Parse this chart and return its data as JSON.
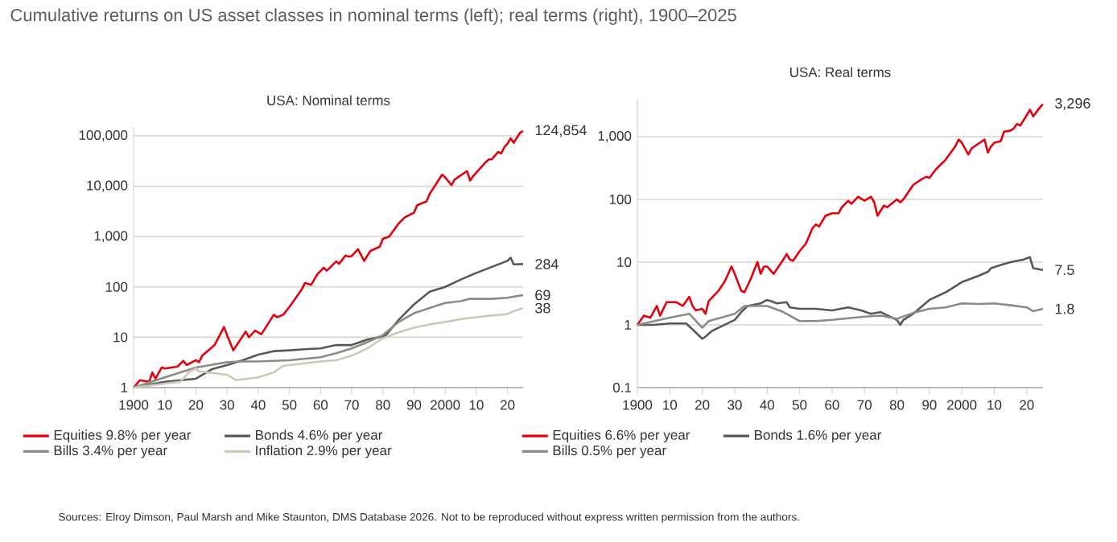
{
  "chart_data": [
    {
      "type": "line",
      "title": "USA: Nominal terms",
      "log": "y",
      "grid": "y",
      "legend": "bottom",
      "xlim": [
        1900,
        2025
      ],
      "ylim": [
        1,
        150000
      ],
      "xticks": [
        {
          "value": 1900,
          "label": "1900"
        },
        {
          "value": 1910,
          "label": "10"
        },
        {
          "value": 1920,
          "label": "20"
        },
        {
          "value": 1930,
          "label": "30"
        },
        {
          "value": 1940,
          "label": "40"
        },
        {
          "value": 1950,
          "label": "50"
        },
        {
          "value": 1960,
          "label": "60"
        },
        {
          "value": 1970,
          "label": "70"
        },
        {
          "value": 1980,
          "label": "80"
        },
        {
          "value": 1990,
          "label": "90"
        },
        {
          "value": 2000,
          "label": "2000"
        },
        {
          "value": 2010,
          "label": "10"
        },
        {
          "value": 2020,
          "label": "20"
        }
      ],
      "yticks": [
        1,
        10,
        100,
        {
          "value": 1000,
          "label": "1,000"
        },
        {
          "value": 10000,
          "label": "10,000"
        },
        {
          "value": 100000,
          "label": "100,000"
        }
      ],
      "series": [
        {
          "name": "Equities 9.8% per year",
          "color": "#e3000f",
          "x": [
            1900,
            1902,
            1905,
            1906,
            1907,
            1909,
            1910,
            1914,
            1916,
            1917,
            1920,
            1921,
            1922,
            1926,
            1929,
            1930,
            1932,
            1936,
            1937,
            1939,
            1941,
            1945,
            1946,
            1948,
            1950,
            1954,
            1955,
            1957,
            1959,
            1961,
            1962,
            1965,
            1966,
            1968,
            1969,
            1970,
            1972,
            1974,
            1976,
            1979,
            1980,
            1982,
            1985,
            1987,
            1990,
            1991,
            1994,
            1995,
            1999,
            2000,
            2002,
            2003,
            2007,
            2008,
            2009,
            2013,
            2014,
            2015,
            2017,
            2018,
            2019,
            2020,
            2021,
            2022,
            2023,
            2024,
            2025
          ],
          "values": [
            1,
            1.4,
            1.3,
            2,
            1.5,
            2.5,
            2.4,
            2.6,
            3.4,
            2.8,
            3.5,
            3.2,
            4.3,
            7,
            16,
            11,
            5.5,
            13,
            10,
            13.5,
            11.5,
            28,
            25,
            28,
            40,
            90,
            120,
            110,
            180,
            240,
            210,
            320,
            290,
            420,
            400,
            410,
            560,
            330,
            520,
            630,
            900,
            1000,
            1800,
            2400,
            3000,
            4200,
            5000,
            7000,
            17000,
            15000,
            10500,
            13500,
            20000,
            13000,
            16000,
            30000,
            34000,
            34500,
            48000,
            45000,
            60000,
            70000,
            90000,
            73000,
            92000,
            115000,
            124854
          ],
          "value_labels": [
            null,
            null,
            null,
            null,
            null,
            null,
            null,
            null,
            null,
            null,
            null,
            null,
            null,
            null,
            null,
            null,
            null,
            null,
            null,
            null,
            null,
            null,
            null,
            null,
            null,
            null,
            null,
            null,
            null,
            null,
            null,
            null,
            null,
            null,
            null,
            null,
            null,
            null,
            null,
            null,
            null,
            null,
            null,
            null,
            null,
            null,
            null,
            null,
            null,
            null,
            null,
            null,
            null,
            null,
            null,
            null,
            null,
            null,
            null,
            null,
            null,
            null,
            null,
            null,
            null,
            null,
            "124,854"
          ]
        },
        {
          "name": "Bonds 4.6% per year",
          "color": "#58585a",
          "x": [
            1900,
            1910,
            1920,
            1925,
            1930,
            1935,
            1940,
            1945,
            1950,
            1955,
            1960,
            1965,
            1970,
            1975,
            1979,
            1981,
            1985,
            1990,
            1995,
            2000,
            2005,
            2010,
            2015,
            2020,
            2021,
            2022,
            2025
          ],
          "values": [
            1,
            1.3,
            1.5,
            2.3,
            2.8,
            3.5,
            4.5,
            5.3,
            5.5,
            5.8,
            6,
            7,
            7,
            9,
            10,
            11,
            22,
            45,
            80,
            100,
            140,
            190,
            250,
            330,
            380,
            280,
            284
          ],
          "value_labels": [
            null,
            null,
            null,
            null,
            null,
            null,
            null,
            null,
            null,
            null,
            null,
            null,
            null,
            null,
            null,
            null,
            null,
            null,
            null,
            null,
            null,
            null,
            null,
            null,
            null,
            null,
            "284"
          ]
        },
        {
          "name": "Bills 3.4% per year",
          "color": "#8c8c84",
          "x": [
            1900,
            1910,
            1920,
            1930,
            1935,
            1940,
            1950,
            1960,
            1965,
            1970,
            1975,
            1980,
            1985,
            1990,
            1995,
            2000,
            2005,
            2008,
            2015,
            2020,
            2025
          ],
          "values": [
            1,
            1.6,
            2.5,
            3.2,
            3.3,
            3.3,
            3.5,
            4,
            4.8,
            6,
            8,
            11,
            20,
            30,
            38,
            48,
            52,
            58,
            58,
            61,
            69
          ],
          "value_labels": [
            null,
            null,
            null,
            null,
            null,
            null,
            null,
            null,
            null,
            null,
            null,
            null,
            null,
            null,
            null,
            null,
            null,
            null,
            null,
            null,
            "69"
          ]
        },
        {
          "name": "Inflation 2.9% per year",
          "color": "#ccc8b8",
          "x": [
            1900,
            1910,
            1915,
            1918,
            1920,
            1921,
            1930,
            1933,
            1940,
            1945,
            1948,
            1950,
            1960,
            1965,
            1970,
            1975,
            1980,
            1985,
            1990,
            1995,
            2000,
            2005,
            2010,
            2015,
            2020,
            2022,
            2025
          ],
          "values": [
            1,
            1.2,
            1.3,
            2.1,
            2.4,
            2.1,
            1.8,
            1.4,
            1.6,
            2,
            2.7,
            2.8,
            3.3,
            3.5,
            4.3,
            6,
            9.5,
            12.5,
            15.5,
            18,
            20,
            23,
            25,
            27,
            29,
            33,
            38
          ],
          "value_labels": [
            null,
            null,
            null,
            null,
            null,
            null,
            null,
            null,
            null,
            null,
            null,
            null,
            null,
            null,
            null,
            null,
            null,
            null,
            null,
            null,
            null,
            null,
            null,
            null,
            null,
            null,
            "38"
          ]
        }
      ],
      "annotations": [
        "Cumulative returns on US asset classes in nominal terms (left); real terms (right), 1900–2025",
        "Sources: Elroy Dimson, Paul Marsh and Mike Staunton, DMS Database 2026. Not to be reproduced without express written permission from the authors."
      ]
    },
    {
      "type": "line",
      "title": "USA: Real terms",
      "log": "y",
      "grid": "y",
      "legend": "bottom",
      "xlim": [
        1900,
        2025
      ],
      "ylim": [
        0.1,
        4000
      ],
      "xticks": [
        {
          "value": 1900,
          "label": "1900"
        },
        {
          "value": 1910,
          "label": "10"
        },
        {
          "value": 1920,
          "label": "20"
        },
        {
          "value": 1930,
          "label": "30"
        },
        {
          "value": 1940,
          "label": "40"
        },
        {
          "value": 1950,
          "label": "50"
        },
        {
          "value": 1960,
          "label": "60"
        },
        {
          "value": 1970,
          "label": "70"
        },
        {
          "value": 1980,
          "label": "80"
        },
        {
          "value": 1990,
          "label": "90"
        },
        {
          "value": 2000,
          "label": "2000"
        },
        {
          "value": 2010,
          "label": "10"
        },
        {
          "value": 2020,
          "label": "20"
        }
      ],
      "yticks": [
        0.1,
        1,
        10,
        100,
        {
          "value": 1000,
          "label": "1,000"
        }
      ],
      "series": [
        {
          "name": "Equities 6.6% per year",
          "color": "#e3000f",
          "x": [
            1900,
            1902,
            1904,
            1906,
            1907,
            1909,
            1912,
            1914,
            1916,
            1917,
            1918,
            1920,
            1921,
            1922,
            1925,
            1927,
            1929,
            1930,
            1932,
            1933,
            1935,
            1937,
            1938,
            1939,
            1940,
            1942,
            1945,
            1946,
            1947,
            1948,
            1950,
            1952,
            1954,
            1955,
            1956,
            1958,
            1960,
            1962,
            1963,
            1965,
            1966,
            1968,
            1970,
            1972,
            1973,
            1974,
            1976,
            1977,
            1980,
            1981,
            1982,
            1985,
            1987,
            1989,
            1990,
            1992,
            1995,
            1998,
            1999,
            2000,
            2002,
            2003,
            2007,
            2008,
            2009,
            2010,
            2012,
            2013,
            2015,
            2016,
            2017,
            2018,
            2020,
            2021,
            2022,
            2024,
            2025
          ],
          "values": [
            1,
            1.4,
            1.3,
            2,
            1.4,
            2.3,
            2.3,
            2,
            2.8,
            2,
            1.7,
            1.8,
            1.5,
            2.4,
            3.5,
            5,
            8.5,
            6.5,
            3.5,
            3.3,
            5.5,
            10,
            6.5,
            8.5,
            8.5,
            6.5,
            11,
            13.5,
            11,
            10.5,
            15,
            20,
            35,
            40,
            37,
            55,
            60,
            60,
            75,
            95,
            85,
            110,
            95,
            110,
            90,
            55,
            80,
            75,
            100,
            90,
            100,
            170,
            200,
            230,
            220,
            300,
            430,
            700,
            900,
            800,
            520,
            650,
            900,
            560,
            700,
            800,
            850,
            1200,
            1250,
            1350,
            1600,
            1500,
            2200,
            2700,
            2100,
            2900,
            3296
          ],
          "value_labels": [
            null,
            null,
            null,
            null,
            null,
            null,
            null,
            null,
            null,
            null,
            null,
            null,
            null,
            null,
            null,
            null,
            null,
            null,
            null,
            null,
            null,
            null,
            null,
            null,
            null,
            null,
            null,
            null,
            null,
            null,
            null,
            null,
            null,
            null,
            null,
            null,
            null,
            null,
            null,
            null,
            null,
            null,
            null,
            null,
            null,
            null,
            null,
            null,
            null,
            null,
            null,
            null,
            null,
            null,
            null,
            null,
            null,
            null,
            null,
            null,
            null,
            null,
            null,
            null,
            null,
            null,
            null,
            null,
            null,
            null,
            null,
            null,
            null,
            null,
            null,
            null,
            "3,296"
          ]
        },
        {
          "name": "Bonds 1.6% per year",
          "color": "#58585a",
          "x": [
            1900,
            1905,
            1910,
            1915,
            1917,
            1920,
            1921,
            1923,
            1925,
            1930,
            1932,
            1934,
            1938,
            1940,
            1941,
            1943,
            1946,
            1947,
            1950,
            1955,
            1960,
            1965,
            1969,
            1972,
            1975,
            1980,
            1981,
            1982,
            1985,
            1990,
            1995,
            2000,
            2005,
            2008,
            2009,
            2012,
            2015,
            2019,
            2021,
            2022,
            2025
          ],
          "values": [
            1,
            1,
            1.05,
            1.05,
            0.85,
            0.6,
            0.65,
            0.8,
            0.9,
            1.2,
            1.6,
            2,
            2.2,
            2.5,
            2.4,
            2.2,
            2.3,
            1.9,
            1.8,
            1.8,
            1.7,
            1.9,
            1.7,
            1.5,
            1.6,
            1.2,
            1,
            1.2,
            1.5,
            2.5,
            3.3,
            4.8,
            6,
            7,
            8,
            9,
            10,
            11,
            12,
            8,
            7.5
          ],
          "value_labels": [
            null,
            null,
            null,
            null,
            null,
            null,
            null,
            null,
            null,
            null,
            null,
            null,
            null,
            null,
            null,
            null,
            null,
            null,
            null,
            null,
            null,
            null,
            null,
            null,
            null,
            null,
            null,
            null,
            null,
            null,
            null,
            null,
            null,
            null,
            null,
            null,
            null,
            null,
            null,
            null,
            "7.5"
          ]
        },
        {
          "name": "Bills 0.5% per year",
          "color": "#8c8c84",
          "x": [
            1900,
            1910,
            1916,
            1920,
            1922,
            1930,
            1933,
            1940,
            1945,
            1950,
            1955,
            1960,
            1970,
            1975,
            1980,
            1985,
            1990,
            1995,
            2000,
            2005,
            2010,
            2015,
            2020,
            2022,
            2025
          ],
          "values": [
            1,
            1.3,
            1.5,
            0.9,
            1.15,
            1.5,
            2,
            2,
            1.6,
            1.15,
            1.15,
            1.2,
            1.35,
            1.4,
            1.25,
            1.55,
            1.8,
            1.9,
            2.2,
            2.15,
            2.2,
            2.05,
            1.9,
            1.65,
            1.8
          ],
          "value_labels": [
            null,
            null,
            null,
            null,
            null,
            null,
            null,
            null,
            null,
            null,
            null,
            null,
            null,
            null,
            null,
            null,
            null,
            null,
            null,
            null,
            null,
            null,
            null,
            null,
            "1.8"
          ]
        }
      ]
    }
  ]
}
